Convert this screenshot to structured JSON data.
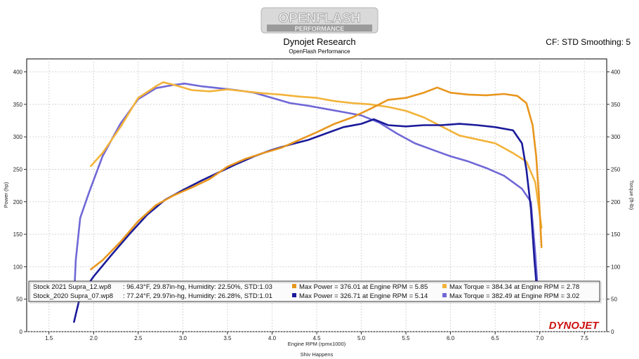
{
  "logo": {
    "line1": "OPENFLASH",
    "line2": "PERFORMANCE"
  },
  "header": {
    "title": "Dynojet Research",
    "subtitle": "OpenFlash Performance",
    "cf": "CF: STD Smoothing: 5"
  },
  "brand": "DYNOJET",
  "footer": "Shiv Happens",
  "colors": {
    "orange_dark": "#e8961e",
    "orange_light": "#f2b33a",
    "blue_dark": "#1a1a9a",
    "blue_light": "#7068d6"
  },
  "chart_data": {
    "type": "line",
    "xlabel": "Engine RPM (rpmx1000)",
    "ylabel_left": "Power (hp)",
    "ylabel_right": "Torque (ft-lb)",
    "xlim": [
      1.25,
      7.75
    ],
    "ylim": [
      0,
      420
    ],
    "xticks": [
      "1.5",
      "2.0",
      "2.5",
      "3.0",
      "3.5",
      "4.0",
      "4.5",
      "5.0",
      "5.5",
      "6.0",
      "6.5",
      "7.0",
      "7.5"
    ],
    "yticks": [
      "0",
      "50",
      "100",
      "150",
      "200",
      "250",
      "300",
      "350",
      "400"
    ],
    "grid": true,
    "series": [
      {
        "name": "Stock 2021 Supra_12.wp8 Power",
        "kind": "power",
        "color": "#e8961e",
        "x": [
          1.97,
          2.1,
          2.3,
          2.5,
          2.7,
          2.9,
          3.1,
          3.3,
          3.5,
          3.7,
          3.9,
          4.1,
          4.3,
          4.5,
          4.7,
          4.9,
          5.1,
          5.3,
          5.5,
          5.7,
          5.85,
          6.0,
          6.2,
          6.4,
          6.6,
          6.75,
          6.85,
          6.92,
          6.96,
          6.99,
          7.02
        ],
        "y": [
          96,
          110,
          138,
          170,
          195,
          210,
          222,
          235,
          254,
          266,
          275,
          283,
          295,
          307,
          320,
          330,
          343,
          357,
          360,
          368,
          376,
          368,
          365,
          364,
          366,
          363,
          352,
          318,
          270,
          210,
          130
        ]
      },
      {
        "name": "Stock 2021 Supra_12.wp8 Torque",
        "kind": "torque",
        "color": "#f2b33a",
        "x": [
          1.97,
          2.1,
          2.3,
          2.5,
          2.7,
          2.78,
          2.9,
          3.1,
          3.3,
          3.5,
          3.7,
          3.9,
          4.1,
          4.3,
          4.5,
          4.7,
          4.9,
          5.1,
          5.3,
          5.5,
          5.7,
          5.9,
          6.1,
          6.3,
          6.5,
          6.7,
          6.85,
          6.95,
          7.02
        ],
        "y": [
          255,
          275,
          315,
          360,
          378,
          384,
          380,
          372,
          370,
          373,
          370,
          367,
          365,
          362,
          360,
          355,
          352,
          350,
          346,
          340,
          330,
          316,
          302,
          296,
          290,
          275,
          262,
          230,
          160
        ]
      },
      {
        "name": "Stock_2020 Supra_07.wp8 Power",
        "kind": "power",
        "color": "#1a1a9a",
        "x": [
          1.78,
          1.85,
          2.0,
          2.2,
          2.4,
          2.6,
          2.8,
          3.0,
          3.2,
          3.4,
          3.6,
          3.8,
          4.0,
          4.2,
          4.4,
          4.6,
          4.8,
          5.0,
          5.14,
          5.3,
          5.5,
          5.7,
          5.9,
          6.1,
          6.3,
          6.5,
          6.7,
          6.8,
          6.85,
          6.9,
          6.94,
          6.97
        ],
        "y": [
          15,
          55,
          85,
          118,
          150,
          180,
          203,
          218,
          232,
          245,
          258,
          270,
          280,
          288,
          295,
          305,
          315,
          320,
          327,
          318,
          316,
          318,
          318,
          320,
          318,
          315,
          310,
          290,
          250,
          190,
          110,
          60
        ]
      },
      {
        "name": "Stock_2020 Supra_07.wp8 Torque",
        "kind": "torque",
        "color": "#7068d6",
        "x": [
          1.78,
          1.8,
          1.85,
          1.95,
          2.1,
          2.3,
          2.5,
          2.7,
          2.9,
          3.02,
          3.2,
          3.4,
          3.6,
          3.8,
          4.0,
          4.2,
          4.4,
          4.6,
          4.8,
          5.0,
          5.2,
          5.4,
          5.6,
          5.8,
          6.0,
          6.2,
          6.4,
          6.6,
          6.8,
          6.9,
          6.95,
          6.98
        ],
        "y": [
          50,
          110,
          175,
          215,
          270,
          320,
          358,
          375,
          380,
          382,
          378,
          375,
          372,
          368,
          360,
          352,
          348,
          343,
          338,
          333,
          322,
          305,
          290,
          280,
          270,
          262,
          252,
          240,
          220,
          200,
          120,
          60
        ]
      }
    ]
  },
  "legend": [
    {
      "file": "Stock 2021 Supra_12.wp8",
      "cond": ": 96.43°F, 29.87in-hg, Humidity: 22.50%, STD:1.03",
      "power_color": "#e8961e",
      "power": "Max Power = 376.01 at Engine RPM = 5.85",
      "torque_color": "#f2b33a",
      "torque": "Max Torque = 384.34 at Engine RPM = 2.78"
    },
    {
      "file": "Stock_2020 Supra_07.wp8",
      "cond": ": 77.24°F, 29.97in-hg, Humidity: 26.28%, STD:1.01",
      "power_color": "#1a1a9a",
      "power": "Max Power = 326.71 at Engine RPM = 5.14",
      "torque_color": "#7068d6",
      "torque": "Max Torque = 382.49 at Engine RPM = 3.02"
    }
  ]
}
